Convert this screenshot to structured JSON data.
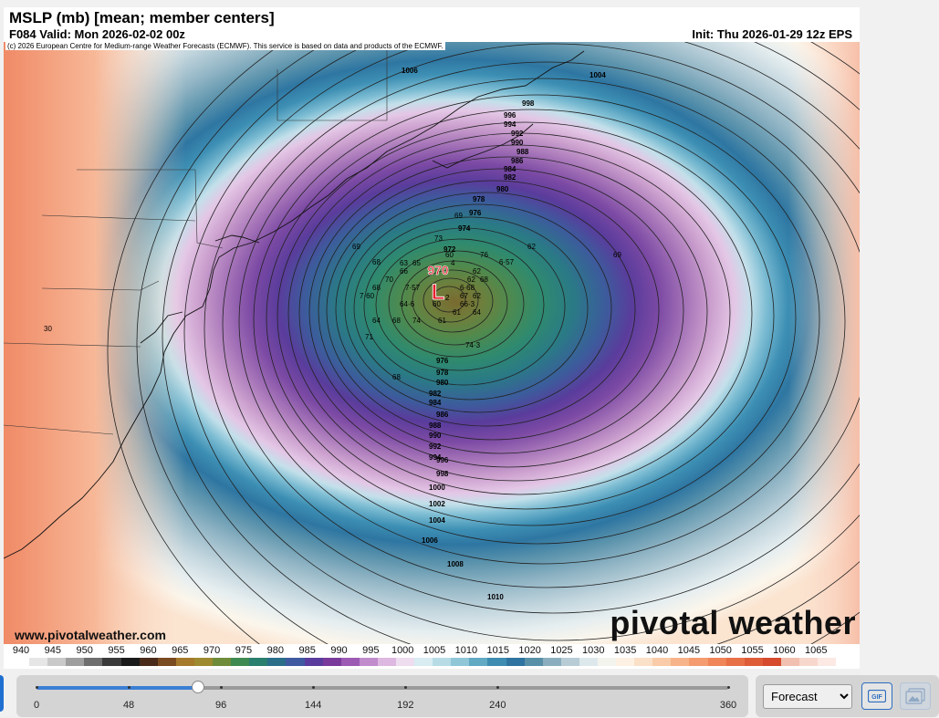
{
  "header": {
    "title": "MSLP (mb) [mean; member centers]",
    "valid": "F084 Valid: Mon 2026-02-02 00z",
    "init": "Init: Thu 2026-01-29 12z EPS"
  },
  "map": {
    "copyright": "(c) 2026 European Centre for Medium-range Weather Forecasts (ECMWF). This service is based on data and products of the ECMWF.",
    "website": "www.pivotalweather.com",
    "brand": "pivotal weather",
    "low_marker": "L",
    "low_value": "970",
    "isobar_labels": [
      "1006",
      "1004",
      "998",
      "996",
      "994",
      "992",
      "990",
      "988",
      "986",
      "984",
      "982",
      "980",
      "978",
      "976",
      "974",
      "972",
      "976",
      "978",
      "980",
      "982",
      "984",
      "986",
      "988",
      "990",
      "992",
      "994",
      "996",
      "998",
      "1000",
      "1002",
      "1004",
      "1006",
      "1008",
      "1010"
    ],
    "member_center_labels": [
      "69",
      "73",
      "69",
      "68",
      "63",
      "65",
      "60",
      "4",
      "76",
      "62",
      "6·57",
      "70",
      "66",
      "62",
      "68",
      "7·57",
      "6·68",
      "68",
      "7·60",
      "2",
      "67",
      "62",
      "64·6",
      "60",
      "66·3",
      "61",
      "64",
      "68",
      "74",
      "61",
      "64",
      "71",
      "74·3",
      "68",
      "62",
      "69",
      "30"
    ]
  },
  "colorbar": {
    "labels": [
      "940",
      "945",
      "950",
      "955",
      "960",
      "965",
      "970",
      "975",
      "980",
      "985",
      "990",
      "995",
      "1000",
      "1005",
      "1010",
      "1015",
      "1020",
      "1025",
      "1030",
      "1035",
      "1040",
      "1045",
      "1050",
      "1055",
      "1060",
      "1065"
    ],
    "colors": [
      "#ffffff",
      "#e6e6e6",
      "#c9c9c9",
      "#9e9e9e",
      "#6e6e6e",
      "#3a3a3a",
      "#1a1a1a",
      "#4a2a1a",
      "#7a4a20",
      "#a57a2c",
      "#9e8a30",
      "#6e8c3a",
      "#3f8a52",
      "#2a7f6e",
      "#2a6e8a",
      "#3f5aa0",
      "#5a3c9e",
      "#7a3a9c",
      "#9c5ab4",
      "#c08ccc",
      "#ddb8e0",
      "#eedcef",
      "#d8ecf2",
      "#b7dce6",
      "#8fc7d8",
      "#62a9c4",
      "#3e8cb2",
      "#2f74a0",
      "#5890a8",
      "#8aaebe",
      "#b8ccd6",
      "#dde8ec",
      "#f4f4ee",
      "#fdf1e4",
      "#fbe0c8",
      "#f9cba8",
      "#f7b48a",
      "#f49c70",
      "#ef8558",
      "#e87046",
      "#df5c38",
      "#d64a2e",
      "#f1c0b0",
      "#f7d7cc",
      "#fce9e3",
      "#ffffff"
    ]
  },
  "controls": {
    "slider_ticks": [
      "0",
      "48",
      "96",
      "144",
      "192",
      "240",
      "360"
    ],
    "slider_current_hour": 84,
    "slider_max_hour": 360,
    "view_select": "Forecast",
    "gif_label": "GIF"
  }
}
